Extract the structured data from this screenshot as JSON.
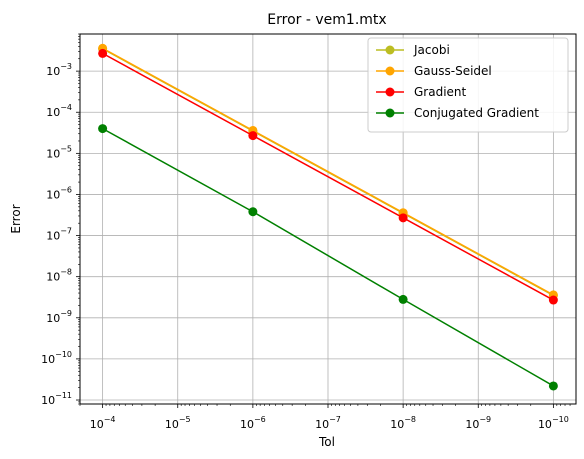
{
  "chart_data": {
    "type": "line",
    "title": "Error - vem1.mtx",
    "xlabel": "Tol",
    "ylabel": "Error",
    "x_scale": "log",
    "y_scale": "log",
    "x_inverted": true,
    "x": [
      0.0001,
      1e-06,
      1e-08,
      1e-10
    ],
    "xlim": [
      0.0002,
      5e-11
    ],
    "ylim": [
      8e-12,
      0.008
    ],
    "x_ticks": [
      0.0001,
      1e-05,
      1e-06,
      1e-07,
      1e-08,
      1e-09,
      1e-10
    ],
    "x_tick_labels": [
      {
        "base": "10",
        "exp": "−4"
      },
      {
        "base": "10",
        "exp": "−5"
      },
      {
        "base": "10",
        "exp": "−6"
      },
      {
        "base": "10",
        "exp": "−7"
      },
      {
        "base": "10",
        "exp": "−8"
      },
      {
        "base": "10",
        "exp": "−9"
      },
      {
        "base": "10",
        "exp": "−10"
      }
    ],
    "y_ticks": [
      1e-11,
      1e-10,
      1e-09,
      1e-08,
      1e-07,
      1e-06,
      1e-05,
      0.0001,
      0.001
    ],
    "y_tick_labels": [
      {
        "base": "10",
        "exp": "−11"
      },
      {
        "base": "10",
        "exp": "−10"
      },
      {
        "base": "10",
        "exp": "−9"
      },
      {
        "base": "10",
        "exp": "−8"
      },
      {
        "base": "10",
        "exp": "−7"
      },
      {
        "base": "10",
        "exp": "−6"
      },
      {
        "base": "10",
        "exp": "−5"
      },
      {
        "base": "10",
        "exp": "−4"
      },
      {
        "base": "10",
        "exp": "−3"
      }
    ],
    "grid": true,
    "legend_position": "top-right",
    "series": [
      {
        "name": "Jacobi",
        "color": "#bcbd22",
        "values": [
          0.0035,
          3.5e-05,
          3.5e-07,
          3.5e-09
        ]
      },
      {
        "name": "Gauss-Seidel",
        "color": "#ffa500",
        "values": [
          0.0036,
          3.6e-05,
          3.6e-07,
          3.6e-09
        ]
      },
      {
        "name": "Gradient",
        "color": "#ff0000",
        "values": [
          0.0027,
          2.7e-05,
          2.7e-07,
          2.7e-09
        ]
      },
      {
        "name": "Conjugated Gradient",
        "color": "#008000",
        "values": [
          4e-05,
          3.8e-07,
          2.8e-09,
          2.2e-11
        ]
      }
    ]
  }
}
